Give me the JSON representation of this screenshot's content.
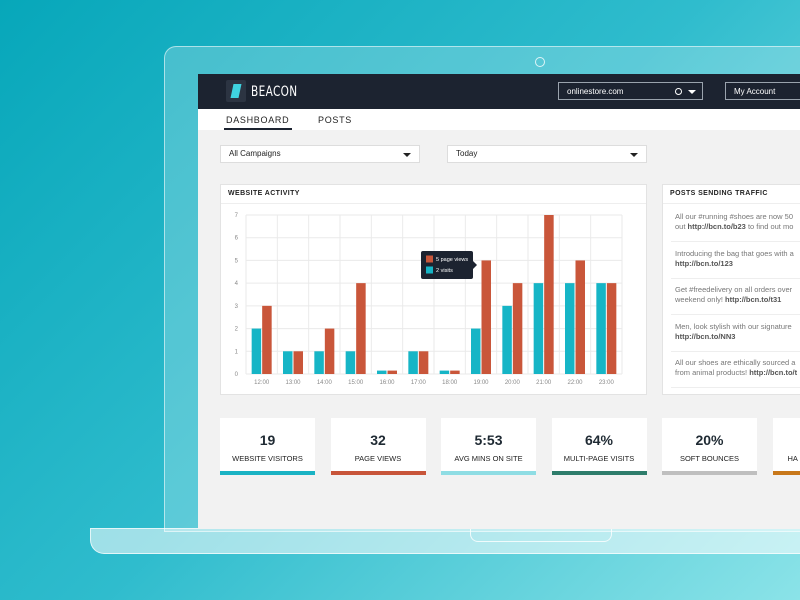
{
  "header": {
    "brand": "BEACON",
    "site_select": "onlinestore.com",
    "account": "My Account"
  },
  "nav": [
    "DASHBOARD",
    "POSTS"
  ],
  "filters": [
    "All Campaigns",
    "Today"
  ],
  "chart_data": {
    "type": "bar",
    "title": "WEBSITE ACTIVITY",
    "categories": [
      "12:00",
      "13:00",
      "14:00",
      "15:00",
      "16:00",
      "17:00",
      "18:00",
      "19:00",
      "20:00",
      "21:00",
      "22:00",
      "23:00"
    ],
    "series": [
      {
        "name": "visits",
        "color": "#16b5c6",
        "values": [
          2,
          1,
          1,
          1,
          0.15,
          1,
          0.15,
          2,
          3,
          4,
          4,
          4
        ]
      },
      {
        "name": "page views",
        "color": "#c9563a",
        "values": [
          3,
          1,
          2,
          4,
          0.15,
          1,
          0.15,
          5,
          4,
          7,
          5,
          4
        ]
      }
    ],
    "ylim": [
      0,
      7
    ],
    "yticks": [
      0,
      1,
      2,
      3,
      4,
      5,
      6,
      7
    ],
    "grid": true
  },
  "posts": {
    "title": "POSTS SENDING TRAFFIC",
    "items": [
      {
        "line1": "All our #running #shoes are now 50",
        "before": "out",
        "link": "http://bcn.to/b23",
        "after": "to find out mo"
      },
      {
        "line1": "Introducing the bag that goes with a",
        "link": "http://bcn.to/123"
      },
      {
        "line1": "Get #freedelivery on all orders over",
        "before": "weekend only!",
        "link": "http://bcn.to/t31"
      },
      {
        "line1": "Men, look stylish with our signature",
        "link": "http://bcn.to/NN3"
      },
      {
        "line1": "All our shoes are ethically sourced a",
        "before": "from animal products!",
        "link": "http://bcn.to/t"
      }
    ]
  },
  "stats": [
    {
      "value": "19",
      "label": "WEBSITE VISITORS",
      "color": "#1ab3c4"
    },
    {
      "value": "32",
      "label": "PAGE VIEWS",
      "color": "#c8553a"
    },
    {
      "value": "5:53",
      "label": "AVG MINS ON SITE",
      "color": "#8fdde4"
    },
    {
      "value": "64%",
      "label": "MULTI-PAGE VISITS",
      "color": "#2e7d6b"
    },
    {
      "value": "20%",
      "label": "SOFT BOUNCES",
      "color": "#bfbfbf"
    },
    {
      "label": "HA",
      "color": "#c8781a"
    }
  ]
}
